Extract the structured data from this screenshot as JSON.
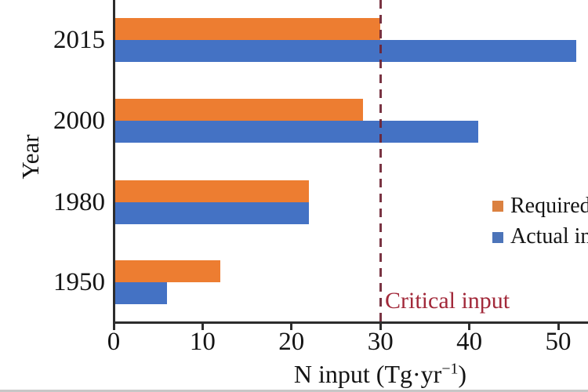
{
  "chart_data": {
    "type": "bar",
    "orientation": "horizontal",
    "title": "",
    "xlabel": "N input (Tg·yr⁻¹)",
    "ylabel": "Year",
    "categories": [
      "2015",
      "2000",
      "1980",
      "1950"
    ],
    "series": [
      {
        "name": "Required input",
        "color": "#ED7D31",
        "values": [
          30,
          28,
          22,
          12
        ]
      },
      {
        "name": "Actual input",
        "color": "#4472C4",
        "values": [
          52,
          41,
          22,
          6
        ]
      }
    ],
    "xticks": [
      0,
      10,
      20,
      30,
      40,
      50
    ],
    "xlim": [
      0,
      53.4
    ],
    "grid": false,
    "reference_line": {
      "value": 30,
      "label": "Critical input",
      "style": "dashed",
      "color": "#8E2A3C"
    },
    "legend": {
      "position": "right-middle",
      "entries": [
        "Required input",
        "Actual input"
      ],
      "note_clipped_at_right_edge": true
    }
  },
  "labels": {
    "xlabel_prefix": "N input (Tg·yr",
    "xlabel_sup": "−1",
    "xlabel_suffix": ")"
  },
  "colors": {
    "required_bar": "#ED7D31",
    "actual_bar": "#4472C4",
    "axis": "#2d2d2d",
    "critical_line": "#6E2333",
    "critical_text": "#A2293A",
    "text": "#141414",
    "background": "#ffffff"
  }
}
